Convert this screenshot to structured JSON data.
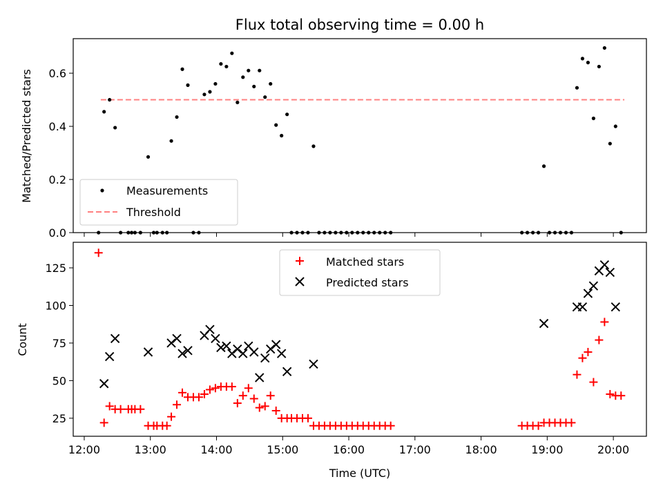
{
  "chart_data": [
    {
      "type": "scatter",
      "title": "Flux total observing time = 0.00 h",
      "ylabel": "Matched/Predicted stars",
      "ylim": [
        0,
        0.73
      ],
      "yticks": [
        0.0,
        0.2,
        0.4,
        0.6
      ],
      "ytick_labels": [
        "0.0",
        "0.2",
        "0.4",
        "0.6"
      ],
      "xlim": [
        "11:50",
        "20:30"
      ],
      "legend_position": "lower-left",
      "legend": [
        "Measurements",
        "Threshold"
      ],
      "threshold": {
        "name": "Threshold",
        "value": 0.5,
        "x_start": "12:15",
        "x_end": "20:10",
        "color": "#ff8080"
      },
      "series": [
        {
          "name": "Measurements",
          "color": "#000000",
          "points": [
            [
              "12:13",
              0.0
            ],
            [
              "12:18",
              0.455
            ],
            [
              "12:23",
              0.5
            ],
            [
              "12:28",
              0.395
            ],
            [
              "12:33",
              0.0
            ],
            [
              "12:40",
              0.0
            ],
            [
              "12:43",
              0.0
            ],
            [
              "12:46",
              0.0
            ],
            [
              "12:51",
              0.0
            ],
            [
              "12:58",
              0.285
            ],
            [
              "13:03",
              0.0
            ],
            [
              "13:06",
              0.0
            ],
            [
              "13:11",
              0.0
            ],
            [
              "13:15",
              0.0
            ],
            [
              "13:19",
              0.345
            ],
            [
              "13:24",
              0.435
            ],
            [
              "13:29",
              0.615
            ],
            [
              "13:34",
              0.555
            ],
            [
              "13:39",
              0.0
            ],
            [
              "13:44",
              0.0
            ],
            [
              "13:49",
              0.52
            ],
            [
              "13:54",
              0.53
            ],
            [
              "13:59",
              0.56
            ],
            [
              "14:04",
              0.635
            ],
            [
              "14:09",
              0.625
            ],
            [
              "14:14",
              0.675
            ],
            [
              "14:19",
              0.49
            ],
            [
              "14:24",
              0.585
            ],
            [
              "14:29",
              0.61
            ],
            [
              "14:34",
              0.55
            ],
            [
              "14:39",
              0.61
            ],
            [
              "14:44",
              0.51
            ],
            [
              "14:49",
              0.56
            ],
            [
              "14:54",
              0.405
            ],
            [
              "14:59",
              0.365
            ],
            [
              "15:04",
              0.445
            ],
            [
              "15:08",
              0.0
            ],
            [
              "15:13",
              0.0
            ],
            [
              "15:18",
              0.0
            ],
            [
              "15:23",
              0.0
            ],
            [
              "15:28",
              0.325
            ],
            [
              "15:33",
              0.0
            ],
            [
              "15:38",
              0.0
            ],
            [
              "15:43",
              0.0
            ],
            [
              "15:48",
              0.0
            ],
            [
              "15:53",
              0.0
            ],
            [
              "15:58",
              0.0
            ],
            [
              "16:03",
              0.0
            ],
            [
              "16:08",
              0.0
            ],
            [
              "16:13",
              0.0
            ],
            [
              "16:18",
              0.0
            ],
            [
              "16:23",
              0.0
            ],
            [
              "16:28",
              0.0
            ],
            [
              "16:33",
              0.0
            ],
            [
              "16:38",
              0.0
            ],
            [
              "18:37",
              0.0
            ],
            [
              "18:42",
              0.0
            ],
            [
              "18:47",
              0.0
            ],
            [
              "18:52",
              0.0
            ],
            [
              "18:57",
              0.25
            ],
            [
              "19:02",
              0.0
            ],
            [
              "19:07",
              0.0
            ],
            [
              "19:12",
              0.0
            ],
            [
              "19:17",
              0.0
            ],
            [
              "19:22",
              0.0
            ],
            [
              "19:27",
              0.545
            ],
            [
              "19:32",
              0.655
            ],
            [
              "19:37",
              0.64
            ],
            [
              "19:42",
              0.43
            ],
            [
              "19:47",
              0.625
            ],
            [
              "19:52",
              0.695
            ],
            [
              "19:57",
              0.335
            ],
            [
              "20:02",
              0.4
            ],
            [
              "20:07",
              0.0
            ]
          ]
        }
      ]
    },
    {
      "type": "scatter",
      "xlabel": "Time (UTC)",
      "ylabel": "Count",
      "ylim": [
        13,
        142
      ],
      "yticks": [
        25,
        50,
        75,
        100,
        125
      ],
      "ytick_labels": [
        "25",
        "50",
        "75",
        "100",
        "125"
      ],
      "xlim": [
        "11:50",
        "20:30"
      ],
      "xticks": [
        "12:00",
        "13:00",
        "14:00",
        "15:00",
        "16:00",
        "17:00",
        "18:00",
        "19:00",
        "20:00"
      ],
      "xtick_labels": [
        "12:00",
        "13:00",
        "14:00",
        "15:00",
        "16:00",
        "17:00",
        "18:00",
        "19:00",
        "20:00"
      ],
      "legend_position": "upper-center",
      "legend": [
        "Matched stars",
        "Predicted stars"
      ],
      "series": [
        {
          "name": "Matched stars",
          "marker": "+",
          "color": "#ff0000",
          "points": [
            [
              "12:13",
              135
            ],
            [
              "12:18",
              22
            ],
            [
              "12:23",
              33
            ],
            [
              "12:28",
              31
            ],
            [
              "12:33",
              31
            ],
            [
              "12:40",
              31
            ],
            [
              "12:43",
              31
            ],
            [
              "12:46",
              31
            ],
            [
              "12:51",
              31
            ],
            [
              "12:58",
              20
            ],
            [
              "13:03",
              20
            ],
            [
              "13:06",
              20
            ],
            [
              "13:11",
              20
            ],
            [
              "13:15",
              20
            ],
            [
              "13:19",
              26
            ],
            [
              "13:24",
              34
            ],
            [
              "13:29",
              42
            ],
            [
              "13:34",
              39
            ],
            [
              "13:39",
              39
            ],
            [
              "13:44",
              39
            ],
            [
              "13:49",
              41
            ],
            [
              "13:54",
              44
            ],
            [
              "13:59",
              45
            ],
            [
              "14:04",
              46
            ],
            [
              "14:09",
              46
            ],
            [
              "14:14",
              46
            ],
            [
              "14:19",
              35
            ],
            [
              "14:24",
              40
            ],
            [
              "14:29",
              45
            ],
            [
              "14:34",
              38
            ],
            [
              "14:39",
              32
            ],
            [
              "14:44",
              33
            ],
            [
              "14:49",
              40
            ],
            [
              "14:54",
              30
            ],
            [
              "14:59",
              25
            ],
            [
              "15:04",
              25
            ],
            [
              "15:08",
              25
            ],
            [
              "15:13",
              25
            ],
            [
              "15:18",
              25
            ],
            [
              "15:23",
              25
            ],
            [
              "15:28",
              20
            ],
            [
              "15:33",
              20
            ],
            [
              "15:38",
              20
            ],
            [
              "15:43",
              20
            ],
            [
              "15:48",
              20
            ],
            [
              "15:53",
              20
            ],
            [
              "15:58",
              20
            ],
            [
              "16:03",
              20
            ],
            [
              "16:08",
              20
            ],
            [
              "16:13",
              20
            ],
            [
              "16:18",
              20
            ],
            [
              "16:23",
              20
            ],
            [
              "16:28",
              20
            ],
            [
              "16:33",
              20
            ],
            [
              "16:38",
              20
            ],
            [
              "18:37",
              20
            ],
            [
              "18:42",
              20
            ],
            [
              "18:47",
              20
            ],
            [
              "18:52",
              20
            ],
            [
              "18:57",
              22
            ],
            [
              "19:02",
              22
            ],
            [
              "19:07",
              22
            ],
            [
              "19:12",
              22
            ],
            [
              "19:17",
              22
            ],
            [
              "19:22",
              22
            ],
            [
              "19:27",
              54
            ],
            [
              "19:32",
              65
            ],
            [
              "19:37",
              69
            ],
            [
              "19:42",
              49
            ],
            [
              "19:47",
              77
            ],
            [
              "19:52",
              89
            ],
            [
              "19:57",
              41
            ],
            [
              "20:02",
              40
            ],
            [
              "20:07",
              40
            ]
          ]
        },
        {
          "name": "Predicted stars",
          "marker": "x",
          "color": "#000000",
          "points": [
            [
              "12:18",
              48
            ],
            [
              "12:23",
              66
            ],
            [
              "12:28",
              78
            ],
            [
              "12:58",
              69
            ],
            [
              "13:19",
              75
            ],
            [
              "13:24",
              78
            ],
            [
              "13:29",
              68
            ],
            [
              "13:34",
              70
            ],
            [
              "13:49",
              80
            ],
            [
              "13:54",
              84
            ],
            [
              "13:59",
              78
            ],
            [
              "14:04",
              72
            ],
            [
              "14:09",
              73
            ],
            [
              "14:14",
              68
            ],
            [
              "14:19",
              71
            ],
            [
              "14:24",
              68
            ],
            [
              "14:29",
              73
            ],
            [
              "14:34",
              69
            ],
            [
              "14:39",
              52
            ],
            [
              "14:44",
              65
            ],
            [
              "14:49",
              71
            ],
            [
              "14:54",
              74
            ],
            [
              "14:59",
              68
            ],
            [
              "15:04",
              56
            ],
            [
              "15:28",
              61
            ],
            [
              "18:57",
              88
            ],
            [
              "19:27",
              99
            ],
            [
              "19:32",
              99
            ],
            [
              "19:37",
              108
            ],
            [
              "19:42",
              113
            ],
            [
              "19:47",
              123
            ],
            [
              "19:52",
              127
            ],
            [
              "19:57",
              122
            ],
            [
              "20:02",
              99
            ]
          ]
        }
      ]
    }
  ]
}
